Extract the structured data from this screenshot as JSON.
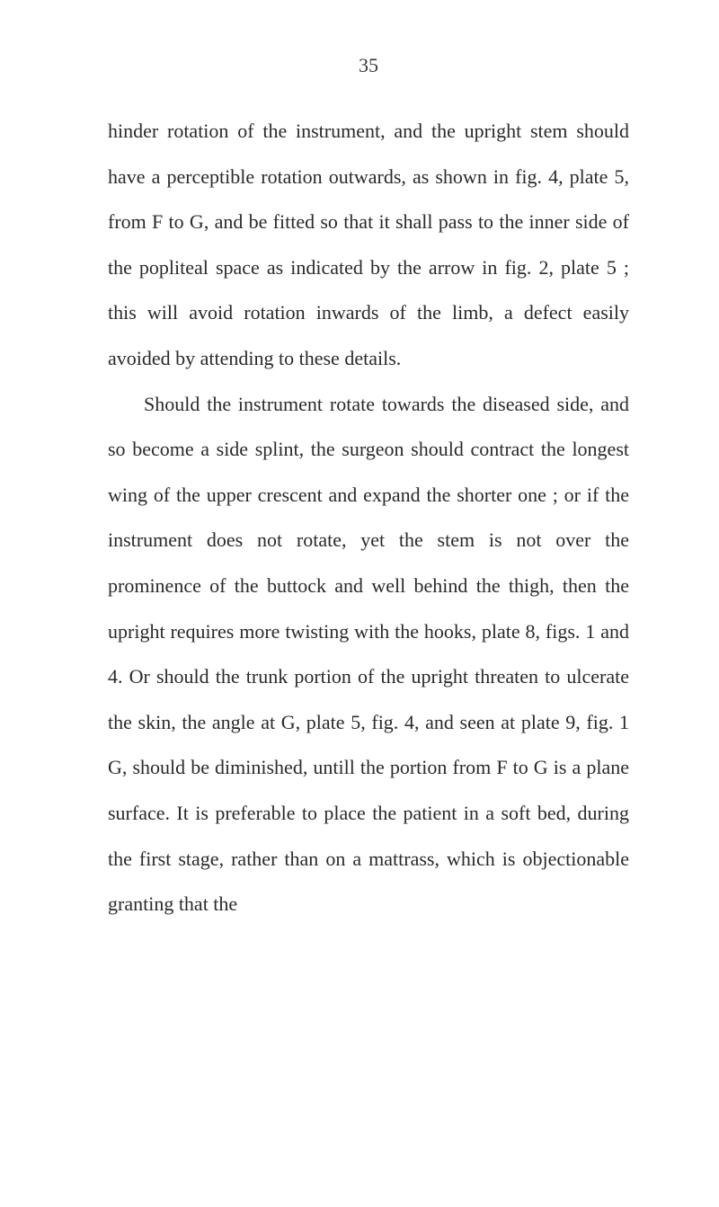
{
  "page": {
    "number": "35",
    "background_color": "#ffffff",
    "text_color": "#2a2a2a",
    "font_family": "Georgia, serif",
    "body_fontsize": 22,
    "line_height": 2.3
  },
  "paragraphs": [
    {
      "text": "hinder rotation of the instrument, and the upright stem should have a perceptible rotation outwards, as shown in fig. 4, plate 5, from F to G, and be fitted so that it shall pass to the inner side of the popliteal space as indicated by the arrow in fig. 2, plate 5 ; this will avoid rotation inwards of the limb, a defect easily avoided by attending to these details.",
      "indented": false
    },
    {
      "text": "Should the instrument rotate towards the diseased side, and so become a side splint, the surgeon should contract the longest wing of the upper crescent and expand the shorter one ; or if the instrument does not rotate, yet the stem is not over the prominence of the buttock and well behind the thigh, then the upright requires more twisting with the hooks, plate 8, figs. 1 and 4. Or should the trunk portion of the upright threaten to ulcerate the skin, the angle at G, plate 5, fig. 4, and seen at plate 9, fig. 1 G, should be diminished, untill the portion from F to G is a plane surface. It is preferable to place the patient in a soft bed, during the first stage, rather than on a mattrass, which is objectionable granting that the",
      "indented": true
    }
  ]
}
